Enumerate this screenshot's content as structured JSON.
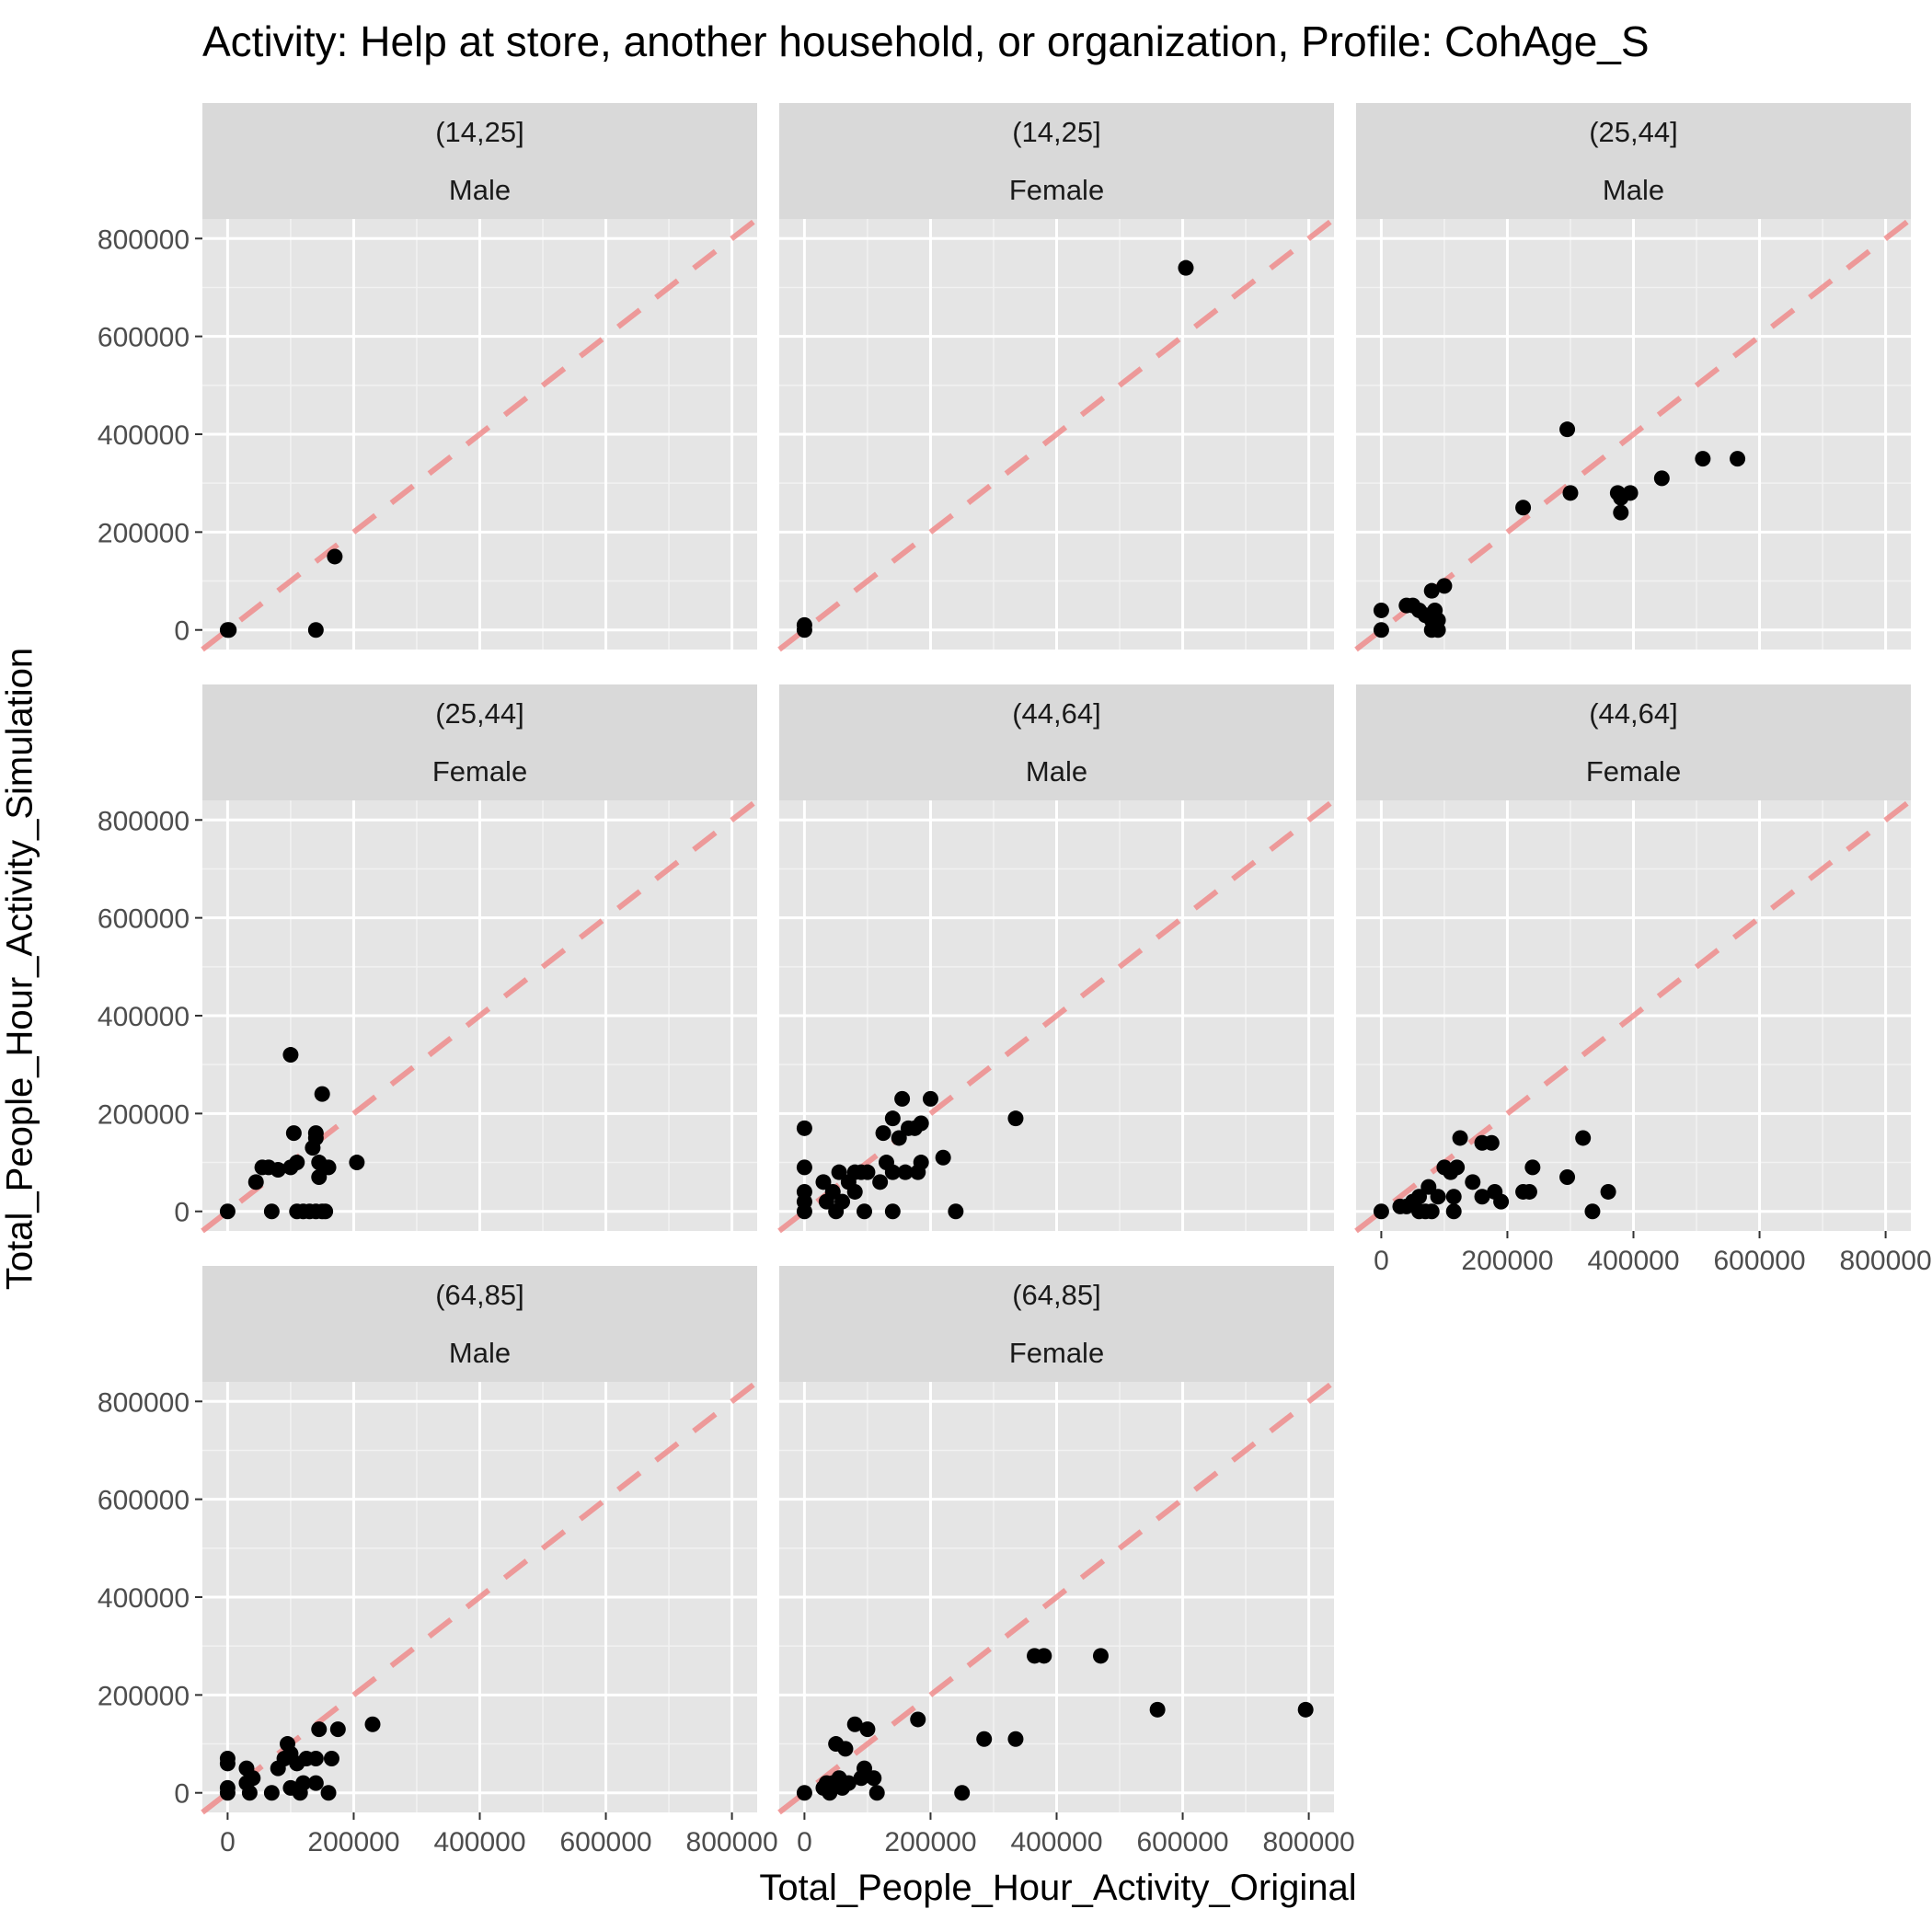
{
  "chart_data": {
    "type": "scatter",
    "title": "Activity: Help at store, another household, or organization, Profile: CohAge_S",
    "xlabel": "Total_People_Hour_Activity_Original",
    "ylabel": "Total_People_Hour_Activity_Simulation",
    "xlim": [
      -40000,
      840000
    ],
    "ylim": [
      -40000,
      840000
    ],
    "x_ticks": [
      0,
      200000,
      400000,
      600000,
      800000
    ],
    "y_ticks": [
      0,
      200000,
      400000,
      600000,
      800000
    ],
    "tick_labels": [
      "0",
      "200000",
      "400000",
      "600000",
      "800000"
    ],
    "reference_line": {
      "style": "dashed",
      "slope": 1,
      "intercept": 0,
      "color": "#f08080"
    },
    "point_color": "#000000",
    "panel_background": "#e5e5e5",
    "strip_background": "#d9d9d9",
    "grid": true,
    "facets": [
      {
        "age": "(14,25]",
        "sex": "Male",
        "points": [
          [
            0,
            0
          ],
          [
            2000,
            0
          ],
          [
            170000,
            150000
          ],
          [
            140000,
            0
          ]
        ]
      },
      {
        "age": "(14,25]",
        "sex": "Female",
        "points": [
          [
            0,
            0
          ],
          [
            0,
            10000
          ],
          [
            605000,
            740000
          ]
        ]
      },
      {
        "age": "(25,44]",
        "sex": "Male",
        "points": [
          [
            0,
            0
          ],
          [
            0,
            40000
          ],
          [
            40000,
            50000
          ],
          [
            50000,
            50000
          ],
          [
            60000,
            40000
          ],
          [
            70000,
            30000
          ],
          [
            80000,
            20000
          ],
          [
            80000,
            80000
          ],
          [
            85000,
            40000
          ],
          [
            80000,
            0
          ],
          [
            90000,
            0
          ],
          [
            90000,
            20000
          ],
          [
            100000,
            90000
          ],
          [
            225000,
            250000
          ],
          [
            295000,
            410000
          ],
          [
            300000,
            280000
          ],
          [
            375000,
            280000
          ],
          [
            380000,
            240000
          ],
          [
            380000,
            270000
          ],
          [
            395000,
            280000
          ],
          [
            445000,
            310000
          ],
          [
            510000,
            350000
          ],
          [
            565000,
            350000
          ]
        ]
      },
      {
        "age": "(25,44]",
        "sex": "Female",
        "points": [
          [
            0,
            0
          ],
          [
            45000,
            60000
          ],
          [
            55000,
            90000
          ],
          [
            65000,
            90000
          ],
          [
            70000,
            0
          ],
          [
            80000,
            85000
          ],
          [
            100000,
            320000
          ],
          [
            100000,
            90000
          ],
          [
            105000,
            160000
          ],
          [
            110000,
            100000
          ],
          [
            110000,
            0
          ],
          [
            120000,
            0
          ],
          [
            130000,
            0
          ],
          [
            135000,
            130000
          ],
          [
            140000,
            160000
          ],
          [
            140000,
            150000
          ],
          [
            140000,
            0
          ],
          [
            145000,
            100000
          ],
          [
            145000,
            70000
          ],
          [
            150000,
            240000
          ],
          [
            150000,
            0
          ],
          [
            155000,
            0
          ],
          [
            160000,
            90000
          ],
          [
            205000,
            100000
          ]
        ]
      },
      {
        "age": "(44,64]",
        "sex": "Male",
        "points": [
          [
            0,
            0
          ],
          [
            0,
            20000
          ],
          [
            0,
            40000
          ],
          [
            0,
            90000
          ],
          [
            0,
            170000
          ],
          [
            30000,
            60000
          ],
          [
            35000,
            20000
          ],
          [
            45000,
            40000
          ],
          [
            50000,
            0
          ],
          [
            55000,
            80000
          ],
          [
            60000,
            20000
          ],
          [
            70000,
            60000
          ],
          [
            80000,
            40000
          ],
          [
            80000,
            80000
          ],
          [
            90000,
            80000
          ],
          [
            95000,
            0
          ],
          [
            100000,
            80000
          ],
          [
            120000,
            60000
          ],
          [
            125000,
            160000
          ],
          [
            130000,
            100000
          ],
          [
            140000,
            190000
          ],
          [
            140000,
            80000
          ],
          [
            140000,
            0
          ],
          [
            150000,
            150000
          ],
          [
            155000,
            230000
          ],
          [
            160000,
            80000
          ],
          [
            165000,
            170000
          ],
          [
            175000,
            170000
          ],
          [
            180000,
            80000
          ],
          [
            185000,
            100000
          ],
          [
            185000,
            180000
          ],
          [
            200000,
            230000
          ],
          [
            220000,
            110000
          ],
          [
            240000,
            0
          ],
          [
            335000,
            190000
          ]
        ]
      },
      {
        "age": "(44,64]",
        "sex": "Female",
        "points": [
          [
            0,
            0
          ],
          [
            30000,
            10000
          ],
          [
            40000,
            10000
          ],
          [
            50000,
            20000
          ],
          [
            60000,
            30000
          ],
          [
            60000,
            0
          ],
          [
            70000,
            0
          ],
          [
            75000,
            50000
          ],
          [
            80000,
            0
          ],
          [
            90000,
            30000
          ],
          [
            100000,
            90000
          ],
          [
            110000,
            80000
          ],
          [
            115000,
            30000
          ],
          [
            115000,
            0
          ],
          [
            120000,
            90000
          ],
          [
            125000,
            150000
          ],
          [
            145000,
            60000
          ],
          [
            160000,
            140000
          ],
          [
            160000,
            30000
          ],
          [
            175000,
            140000
          ],
          [
            180000,
            40000
          ],
          [
            190000,
            20000
          ],
          [
            225000,
            40000
          ],
          [
            235000,
            40000
          ],
          [
            240000,
            90000
          ],
          [
            295000,
            70000
          ],
          [
            320000,
            150000
          ],
          [
            335000,
            0
          ],
          [
            360000,
            40000
          ]
        ]
      },
      {
        "age": "(64,85]",
        "sex": "Male",
        "points": [
          [
            0,
            0
          ],
          [
            0,
            10000
          ],
          [
            0,
            60000
          ],
          [
            0,
            70000
          ],
          [
            30000,
            20000
          ],
          [
            30000,
            50000
          ],
          [
            35000,
            0
          ],
          [
            40000,
            30000
          ],
          [
            70000,
            0
          ],
          [
            80000,
            50000
          ],
          [
            90000,
            70000
          ],
          [
            95000,
            100000
          ],
          [
            100000,
            10000
          ],
          [
            100000,
            80000
          ],
          [
            110000,
            60000
          ],
          [
            115000,
            0
          ],
          [
            120000,
            20000
          ],
          [
            125000,
            70000
          ],
          [
            140000,
            20000
          ],
          [
            140000,
            70000
          ],
          [
            145000,
            130000
          ],
          [
            160000,
            0
          ],
          [
            165000,
            70000
          ],
          [
            175000,
            130000
          ],
          [
            230000,
            140000
          ]
        ]
      },
      {
        "age": "(64,85]",
        "sex": "Female",
        "points": [
          [
            0,
            0
          ],
          [
            30000,
            10000
          ],
          [
            35000,
            20000
          ],
          [
            40000,
            0
          ],
          [
            45000,
            20000
          ],
          [
            50000,
            100000
          ],
          [
            55000,
            30000
          ],
          [
            60000,
            10000
          ],
          [
            65000,
            90000
          ],
          [
            70000,
            20000
          ],
          [
            80000,
            140000
          ],
          [
            90000,
            30000
          ],
          [
            95000,
            50000
          ],
          [
            100000,
            130000
          ],
          [
            110000,
            30000
          ],
          [
            115000,
            0
          ],
          [
            180000,
            150000
          ],
          [
            250000,
            0
          ],
          [
            285000,
            110000
          ],
          [
            335000,
            110000
          ],
          [
            365000,
            280000
          ],
          [
            380000,
            280000
          ],
          [
            470000,
            280000
          ],
          [
            560000,
            170000
          ],
          [
            795000,
            170000
          ]
        ]
      }
    ]
  }
}
